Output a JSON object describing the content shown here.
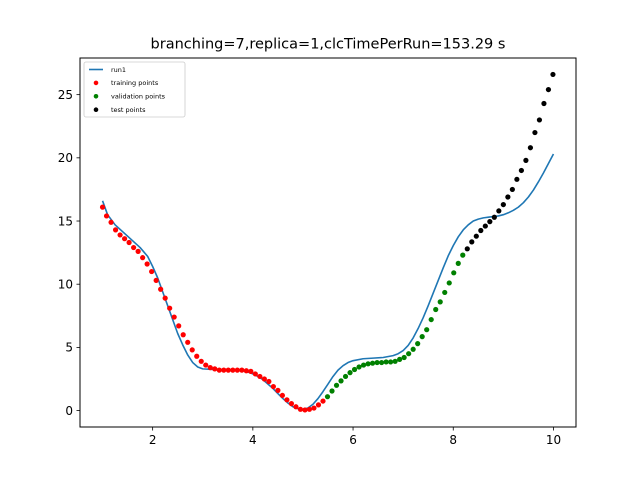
{
  "chart_data": {
    "type": "scatter",
    "title": "branching=7,replica=1,clcTimePerRun=153.29 s",
    "xlabel": "",
    "ylabel": "",
    "xlim": [
      0.55,
      10.45
    ],
    "ylim": [
      -1.3,
      27.9
    ],
    "xticks": [
      2,
      4,
      6,
      8,
      10
    ],
    "yticks": [
      0,
      5,
      10,
      15,
      20,
      25
    ],
    "grid": false,
    "legend_position": "upper-left",
    "series": [
      {
        "name": "run1",
        "kind": "line",
        "color": "#1f77b4",
        "points": [
          [
            1.0,
            16.6
          ],
          [
            1.1,
            15.5
          ],
          [
            1.25,
            14.7
          ],
          [
            1.5,
            13.8
          ],
          [
            1.75,
            12.9
          ],
          [
            1.9,
            12.2
          ],
          [
            2.0,
            11.4
          ],
          [
            2.1,
            10.5
          ],
          [
            2.2,
            9.4
          ],
          [
            2.3,
            8.3
          ],
          [
            2.4,
            7.2
          ],
          [
            2.5,
            6.1
          ],
          [
            2.6,
            5.2
          ],
          [
            2.7,
            4.4
          ],
          [
            2.8,
            3.8
          ],
          [
            2.9,
            3.45
          ],
          [
            3.0,
            3.3
          ],
          [
            3.2,
            3.25
          ],
          [
            3.5,
            3.25
          ],
          [
            3.8,
            3.15
          ],
          [
            3.9,
            3.05
          ],
          [
            4.0,
            2.9
          ],
          [
            4.1,
            2.7
          ],
          [
            4.2,
            2.45
          ],
          [
            4.3,
            2.1
          ],
          [
            4.4,
            1.75
          ],
          [
            4.5,
            1.35
          ],
          [
            4.6,
            0.95
          ],
          [
            4.7,
            0.6
          ],
          [
            4.8,
            0.3
          ],
          [
            4.9,
            0.15
          ],
          [
            5.0,
            0.1
          ],
          [
            5.1,
            0.2
          ],
          [
            5.2,
            0.5
          ],
          [
            5.3,
            0.95
          ],
          [
            5.4,
            1.5
          ],
          [
            5.5,
            2.1
          ],
          [
            5.6,
            2.7
          ],
          [
            5.7,
            3.2
          ],
          [
            5.8,
            3.55
          ],
          [
            5.9,
            3.8
          ],
          [
            6.0,
            3.95
          ],
          [
            6.2,
            4.1
          ],
          [
            6.4,
            4.15
          ],
          [
            6.6,
            4.2
          ],
          [
            6.8,
            4.35
          ],
          [
            6.9,
            4.5
          ],
          [
            7.0,
            4.75
          ],
          [
            7.1,
            5.15
          ],
          [
            7.2,
            5.75
          ],
          [
            7.3,
            6.5
          ],
          [
            7.4,
            7.35
          ],
          [
            7.5,
            8.3
          ],
          [
            7.6,
            9.3
          ],
          [
            7.7,
            10.3
          ],
          [
            7.8,
            11.3
          ],
          [
            7.9,
            12.25
          ],
          [
            8.0,
            13.05
          ],
          [
            8.1,
            13.75
          ],
          [
            8.2,
            14.3
          ],
          [
            8.3,
            14.7
          ],
          [
            8.4,
            15.0
          ],
          [
            8.5,
            15.15
          ],
          [
            8.6,
            15.25
          ],
          [
            8.7,
            15.3
          ],
          [
            8.8,
            15.35
          ],
          [
            8.9,
            15.4
          ],
          [
            9.0,
            15.5
          ],
          [
            9.1,
            15.65
          ],
          [
            9.2,
            15.85
          ],
          [
            9.3,
            16.1
          ],
          [
            9.4,
            16.45
          ],
          [
            9.5,
            16.9
          ],
          [
            9.6,
            17.45
          ],
          [
            9.7,
            18.1
          ],
          [
            9.8,
            18.8
          ],
          [
            9.9,
            19.55
          ],
          [
            10.0,
            20.3
          ]
        ]
      },
      {
        "name": "training points",
        "kind": "scatter",
        "color": "#ff0000",
        "points": [
          [
            1.0,
            16.1
          ],
          [
            1.08,
            15.4
          ],
          [
            1.17,
            14.9
          ],
          [
            1.26,
            14.3
          ],
          [
            1.35,
            13.9
          ],
          [
            1.44,
            13.6
          ],
          [
            1.53,
            13.3
          ],
          [
            1.62,
            12.9
          ],
          [
            1.71,
            12.6
          ],
          [
            1.8,
            12.1
          ],
          [
            1.89,
            11.6
          ],
          [
            1.98,
            11.0
          ],
          [
            2.07,
            10.3
          ],
          [
            2.16,
            9.6
          ],
          [
            2.25,
            8.9
          ],
          [
            2.34,
            8.1
          ],
          [
            2.43,
            7.4
          ],
          [
            2.52,
            6.7
          ],
          [
            2.61,
            6.0
          ],
          [
            2.7,
            5.4
          ],
          [
            2.79,
            4.8
          ],
          [
            2.88,
            4.3
          ],
          [
            2.97,
            3.9
          ],
          [
            3.06,
            3.6
          ],
          [
            3.15,
            3.4
          ],
          [
            3.24,
            3.3
          ],
          [
            3.33,
            3.2
          ],
          [
            3.42,
            3.2
          ],
          [
            3.51,
            3.2
          ],
          [
            3.6,
            3.2
          ],
          [
            3.69,
            3.2
          ],
          [
            3.78,
            3.2
          ],
          [
            3.87,
            3.15
          ],
          [
            3.96,
            3.1
          ],
          [
            4.05,
            2.9
          ],
          [
            4.14,
            2.7
          ],
          [
            4.23,
            2.5
          ],
          [
            4.32,
            2.3
          ],
          [
            4.41,
            1.9
          ],
          [
            4.5,
            1.6
          ],
          [
            4.59,
            1.2
          ],
          [
            4.68,
            0.85
          ],
          [
            4.77,
            0.55
          ],
          [
            4.86,
            0.3
          ],
          [
            4.95,
            0.1
          ],
          [
            5.04,
            0.05
          ],
          [
            5.13,
            0.1
          ],
          [
            5.22,
            0.2
          ],
          [
            5.31,
            0.45
          ],
          [
            5.4,
            0.75
          ]
        ]
      },
      {
        "name": "validation points",
        "kind": "scatter",
        "color": "#008000",
        "points": [
          [
            5.49,
            1.1
          ],
          [
            5.58,
            1.55
          ],
          [
            5.67,
            2.0
          ],
          [
            5.76,
            2.35
          ],
          [
            5.85,
            2.7
          ],
          [
            5.94,
            3.0
          ],
          [
            6.03,
            3.25
          ],
          [
            6.12,
            3.45
          ],
          [
            6.21,
            3.6
          ],
          [
            6.3,
            3.7
          ],
          [
            6.39,
            3.75
          ],
          [
            6.48,
            3.8
          ],
          [
            6.57,
            3.8
          ],
          [
            6.66,
            3.85
          ],
          [
            6.75,
            3.85
          ],
          [
            6.84,
            3.9
          ],
          [
            6.93,
            4.05
          ],
          [
            7.02,
            4.2
          ],
          [
            7.11,
            4.5
          ],
          [
            7.2,
            4.85
          ],
          [
            7.29,
            5.3
          ],
          [
            7.38,
            5.85
          ],
          [
            7.47,
            6.4
          ],
          [
            7.56,
            7.2
          ],
          [
            7.65,
            8.0
          ],
          [
            7.74,
            8.6
          ],
          [
            7.83,
            9.35
          ],
          [
            7.92,
            10.1
          ],
          [
            8.01,
            10.9
          ],
          [
            8.1,
            11.65
          ],
          [
            8.19,
            12.3
          ]
        ]
      },
      {
        "name": "test points",
        "kind": "scatter",
        "color": "#000000",
        "points": [
          [
            8.28,
            12.8
          ],
          [
            8.37,
            13.35
          ],
          [
            8.46,
            13.8
          ],
          [
            8.55,
            14.25
          ],
          [
            8.64,
            14.6
          ],
          [
            8.73,
            14.95
          ],
          [
            8.82,
            15.3
          ],
          [
            8.91,
            15.8
          ],
          [
            9.0,
            16.3
          ],
          [
            9.09,
            16.9
          ],
          [
            9.18,
            17.5
          ],
          [
            9.27,
            18.3
          ],
          [
            9.36,
            19.0
          ],
          [
            9.45,
            19.8
          ],
          [
            9.54,
            20.8
          ],
          [
            9.63,
            22.0
          ],
          [
            9.72,
            23.0
          ],
          [
            9.81,
            24.3
          ],
          [
            9.9,
            25.4
          ],
          [
            9.99,
            26.6
          ]
        ]
      }
    ]
  }
}
